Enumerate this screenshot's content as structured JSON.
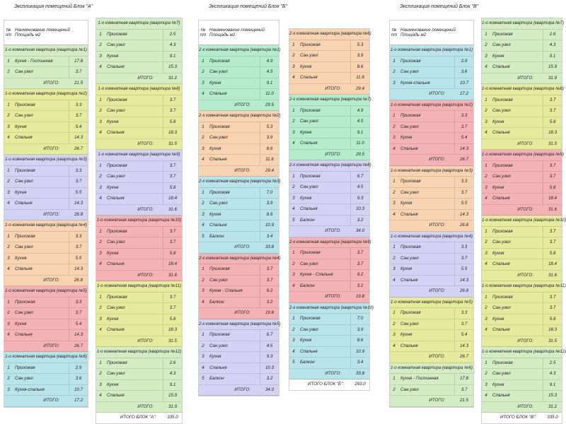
{
  "header": {
    "num": "№ п/п",
    "name": "Наименование помещений",
    "area": "Площадь м2"
  },
  "total_label": "ИТОГО:",
  "columns": [
    {
      "x": 5,
      "y": 28,
      "w": 120,
      "title": "Экспликация помещений Блок \"А\"",
      "header": true,
      "groups": [
        {
          "title": "1-о комнатная квартира (квартира №1)",
          "color": "green",
          "rows": [
            [
              "1",
              "Кухня - Гостинная",
              "17.8"
            ],
            [
              "2",
              "Сан.узел",
              "3.7"
            ]
          ],
          "total": "21.5"
        },
        {
          "title": "1-о комнатная квартира (квартира №2)",
          "color": "yellow",
          "rows": [
            [
              "1",
              "Прихожая",
              "3.3"
            ],
            [
              "2",
              "Сан.узел",
              "3.7"
            ],
            [
              "3",
              "Кухня",
              "5.4"
            ],
            [
              "4",
              "Спальня",
              "14.3"
            ]
          ],
          "total": "26.7"
        },
        {
          "title": "1-о комнатная квартира (квартира №3)",
          "color": "purple",
          "rows": [
            [
              "1",
              "Прихожая",
              "3.3"
            ],
            [
              "2",
              "Сан.узел",
              "3.7"
            ],
            [
              "3",
              "Кухня",
              "5.5"
            ],
            [
              "4",
              "Спальня",
              "14.3"
            ]
          ],
          "total": "26.8"
        },
        {
          "title": "1-о комнатная квартира (квартира №4)",
          "color": "orange",
          "rows": [
            [
              "1",
              "Прихожая",
              "3.3"
            ],
            [
              "2",
              "Сан.узел",
              "3.7"
            ],
            [
              "3",
              "Кухня",
              "5.5"
            ],
            [
              "4",
              "Спальня",
              "14.3"
            ]
          ],
          "total": "26.8"
        },
        {
          "title": "1-о комнатная квартира (квартира №5)",
          "color": "pink",
          "rows": [
            [
              "1",
              "Прихожая",
              "3.3"
            ],
            [
              "2",
              "Сан.узел",
              "3.7"
            ],
            [
              "3",
              "Кухня",
              "5.4"
            ],
            [
              "4",
              "Спальня",
              "14.3"
            ]
          ],
          "total": "26.7"
        },
        {
          "title": "1-о комнатная квартира (квартира №6)",
          "color": "blue",
          "rows": [
            [
              "1",
              "Прихожая",
              "2.9"
            ],
            [
              "2",
              "Сан.узел",
              "3.6"
            ],
            [
              "3",
              "Кухня-спальня",
              "10.7"
            ]
          ],
          "total": "17.2"
        }
      ]
    },
    {
      "x": 135,
      "y": 25,
      "w": 123,
      "header": false,
      "grand_label": "ИТОГО БЛОК \"А\":",
      "grand_total": "335.0",
      "groups": [
        {
          "title": "1-о комнатная квартира (квартира №7)",
          "color": "green",
          "rows": [
            [
              "1",
              "Прихожая",
              "2.5"
            ],
            [
              "2",
              "Сан.узел",
              "4.3"
            ],
            [
              "3",
              "Кухня",
              "9.1"
            ],
            [
              "4",
              "Спальня",
              "15.3"
            ]
          ],
          "total": "31.2"
        },
        {
          "title": "1-о комнатная квартира (квартира №8)",
          "color": "yellow",
          "rows": [
            [
              "1",
              "Прихожая",
              "3.7"
            ],
            [
              "2",
              "Сан.узел",
              "3.7"
            ],
            [
              "3",
              "Кухня",
              "5.8"
            ],
            [
              "4",
              "Спальня",
              "18.3"
            ]
          ],
          "total": "31.5"
        },
        {
          "title": "1-о комнатная квартира (квартира №9)",
          "color": "purple",
          "rows": [
            [
              "1",
              "Прихожая",
              "3.7"
            ],
            [
              "2",
              "Сан.узел",
              "3.7"
            ],
            [
              "3",
              "Кухня",
              "5.8"
            ],
            [
              "4",
              "Спальня",
              "18.4"
            ]
          ],
          "total": "31.6"
        },
        {
          "title": "1-о комнатная квартира (квартира №10)",
          "color": "pink",
          "rows": [
            [
              "1",
              "Прихожая",
              "3.7"
            ],
            [
              "2",
              "Сан.узел",
              "3.7"
            ],
            [
              "3",
              "Кухня",
              "5.8"
            ],
            [
              "4",
              "Спальня",
              "18.4"
            ]
          ],
          "total": "31.6"
        },
        {
          "title": "1-о комнатная квартира (квартира №11)",
          "color": "yellow",
          "rows": [
            [
              "1",
              "Прихожая",
              "3.7"
            ],
            [
              "2",
              "Сан.узел",
              "3.7"
            ],
            [
              "3",
              "Кухня",
              "5.8"
            ],
            [
              "4",
              "Спальня",
              "18.3"
            ]
          ],
          "total": "31.5"
        },
        {
          "title": "1-о комнатная квартира (квартира №12)",
          "color": "green",
          "rows": [
            [
              "1",
              "Прихожая",
              "2.6"
            ],
            [
              "2",
              "Сан.узел",
              "4.3"
            ],
            [
              "3",
              "Кухня",
              "9.1"
            ],
            [
              "4",
              "Спальня",
              "15.9"
            ]
          ],
          "total": "31.9"
        }
      ]
    },
    {
      "x": 280,
      "y": 28,
      "w": 115,
      "title": "Экспликация помещений Блок \"Б\"",
      "header": true,
      "groups": [
        {
          "title": "2-х комнатная квартира (квартира №1)",
          "color": "mint",
          "rows": [
            [
              "1",
              "Прихожая",
              "4.9"
            ],
            [
              "2",
              "Сан.узел",
              "4.5"
            ],
            [
              "3",
              "Кухня",
              "9.1"
            ],
            [
              "4",
              "Спальня",
              "11.0"
            ]
          ],
          "total": "29.5"
        },
        {
          "title": "2-х комнатная квартира (квартира №2)",
          "color": "orange",
          "rows": [
            [
              "1",
              "Прихожая",
              "5.3"
            ],
            [
              "2",
              "Сан.узел",
              "3.9"
            ],
            [
              "3",
              "Кухня",
              "8.6"
            ],
            [
              "4",
              "Спальня",
              "11.6"
            ]
          ],
          "total": "29.4"
        },
        {
          "title": "2-х комнатная квартира (квартира №3)",
          "color": "blue",
          "rows": [
            [
              "1",
              "Прихожая",
              "7.0"
            ],
            [
              "2",
              "Сан.узел",
              "3.9"
            ],
            [
              "3",
              "Кухня",
              "8.6"
            ],
            [
              "4",
              "Спальня",
              "10.9"
            ],
            [
              "5",
              "Балкон",
              "3.4"
            ]
          ],
          "total": "33.8"
        },
        {
          "title": "2-х комнатная квартира (квартира №4)",
          "color": "pink",
          "rows": [
            [
              "1",
              "Прихожая",
              "3.7"
            ],
            [
              "2",
              "Сан.узел",
              "3.7"
            ],
            [
              "3",
              "Кухня - Спальня",
              "9.2"
            ],
            [
              "4",
              "Балкон",
              "3.2"
            ]
          ],
          "total": "19.8"
        },
        {
          "title": "2-х комнатная квартира (квартира №5)",
          "color": "purple",
          "rows": [
            [
              "1",
              "Прихожая",
              "6.7"
            ],
            [
              "2",
              "Сан.узел",
              "4.5"
            ],
            [
              "3",
              "Кухня",
              "9.3"
            ],
            [
              "4",
              "Спальня",
              "10.3"
            ],
            [
              "5",
              "Балкон",
              "3.2"
            ]
          ],
          "total": "34.0"
        }
      ]
    },
    {
      "x": 408,
      "y": 40,
      "w": 115,
      "header": false,
      "grand_label": "ИТОГО БЛОК \"Б\":",
      "grand_total": "293.0",
      "groups": [
        {
          "title": "2-х комнатная квартира (квартира №6)",
          "color": "orange",
          "rows": [
            [
              "1",
              "Прихожая",
              "5.3"
            ],
            [
              "2",
              "Сан.узел",
              "3.9"
            ],
            [
              "3",
              "Кухня",
              "8.6"
            ],
            [
              "4",
              "Спальня",
              "11.6"
            ]
          ],
          "total": "29.4"
        },
        {
          "title": "2-х комнатная квартира (квартира №7)",
          "color": "mint",
          "rows": [
            [
              "1",
              "Прихожая",
              "4.9"
            ],
            [
              "2",
              "Сан.узел",
              "4.5"
            ],
            [
              "3",
              "Кухня",
              "9.1"
            ],
            [
              "4",
              "Спальня",
              "11.0"
            ]
          ],
          "total": "29.5"
        },
        {
          "title": "2-х комнатная квартира (квартира №8)",
          "color": "purple",
          "rows": [
            [
              "1",
              "Прихожая",
              "6.7"
            ],
            [
              "2",
              "Сан.узел",
              "4.5"
            ],
            [
              "3",
              "Кухня",
              "9.3"
            ],
            [
              "4",
              "Спальня",
              "10.3"
            ],
            [
              "5",
              "Балкон",
              "3.2"
            ]
          ],
          "total": "34.0"
        },
        {
          "title": "2-х комнатная квартира (квартира №9)",
          "color": "pink",
          "rows": [
            [
              "1",
              "Прихожая",
              "3.7"
            ],
            [
              "2",
              "Сан.узел",
              "3.7"
            ],
            [
              "3",
              "Кухня - Спальня",
              "9.2"
            ],
            [
              "4",
              "Балкон",
              "3.2"
            ]
          ],
          "total": "19.8"
        },
        {
          "title": "2-х комнатная квартира (квартира №10)",
          "color": "blue",
          "rows": [
            [
              "1",
              "Прихожая",
              "7.0"
            ],
            [
              "2",
              "Сан.узел",
              "3.9"
            ],
            [
              "3",
              "Кухня",
              "8.6"
            ],
            [
              "4",
              "Спальня",
              "10.9"
            ],
            [
              "5",
              "Балкон",
              "3.4"
            ]
          ],
          "total": "33.8"
        }
      ]
    },
    {
      "x": 550,
      "y": 28,
      "w": 120,
      "title": "Экспликация помещений Блок \"В\"",
      "header": true,
      "groups": [
        {
          "title": "1-о комнатная квартира (квартира №1)",
          "color": "blue",
          "rows": [
            [
              "1",
              "Прихожая",
              "2.9"
            ],
            [
              "2",
              "Сан.узел",
              "3.6"
            ],
            [
              "3",
              "Кухня-спальня",
              "10.7"
            ]
          ],
          "total": "17.2"
        },
        {
          "title": "1-о комнатная квартира (квартира №2)",
          "color": "pink",
          "rows": [
            [
              "1",
              "Прихожая",
              "3.3"
            ],
            [
              "2",
              "Сан.узел",
              "3.7"
            ],
            [
              "3",
              "Кухня",
              "5.4"
            ],
            [
              "4",
              "Спальня",
              "14.3"
            ]
          ],
          "total": "26.7"
        },
        {
          "title": "1-о комнатная квартира (квартира №3)",
          "color": "orange",
          "rows": [
            [
              "1",
              "Прихожая",
              "3.3"
            ],
            [
              "2",
              "Сан.узел",
              "3.7"
            ],
            [
              "3",
              "Кухня",
              "5.5"
            ],
            [
              "4",
              "Спальня",
              "14.3"
            ]
          ],
          "total": "26.8"
        },
        {
          "title": "1-о комнатная квартира (квартира №4)",
          "color": "purple",
          "rows": [
            [
              "1",
              "Прихожая",
              "3.3"
            ],
            [
              "2",
              "Сан.узел",
              "3.7"
            ],
            [
              "3",
              "Кухня",
              "5.5"
            ],
            [
              "4",
              "Спальня",
              "14.3"
            ]
          ],
          "total": "26.8"
        },
        {
          "title": "1-о комнатная квартира (квартира №5)",
          "color": "yellow",
          "rows": [
            [
              "1",
              "Прихожая",
              "3.3"
            ],
            [
              "2",
              "Сан.узел",
              "3.7"
            ],
            [
              "3",
              "Кухня",
              "5.4"
            ],
            [
              "4",
              "Спальня",
              "14.3"
            ]
          ],
          "total": "26.7"
        },
        {
          "title": "1-о комнатная квартира (квартира №6)",
          "color": "green",
          "rows": [
            [
              "1",
              "Кухня - Гостинная",
              "17.8"
            ],
            [
              "2",
              "Сан.узел",
              "3.7"
            ]
          ],
          "total": "21.5"
        }
      ]
    },
    {
      "x": 680,
      "y": 25,
      "w": 115,
      "header": false,
      "grand_label": "ИТОГО БЛОК \"В\":",
      "grand_total": "335.0",
      "groups": [
        {
          "title": "1-о комнатная квартира (квартира №7)",
          "color": "green",
          "rows": [
            [
              "1",
              "Прихожая",
              "2.6"
            ],
            [
              "2",
              "Сан.узел",
              "4.3"
            ],
            [
              "3",
              "Кухня",
              "9.1"
            ],
            [
              "4",
              "Спальня",
              "15.9"
            ]
          ],
          "total": "31.9"
        },
        {
          "title": "1-о комнатная квартира (квартира №8)",
          "color": "yellow",
          "rows": [
            [
              "1",
              "Прихожая",
              "3.7"
            ],
            [
              "2",
              "Сан.узел",
              "3.7"
            ],
            [
              "3",
              "Кухня",
              "5.8"
            ],
            [
              "4",
              "Спальня",
              "18.3"
            ]
          ],
          "total": "31.5"
        },
        {
          "title": "1-о комнатная квартира (квартира №9)",
          "color": "pink",
          "rows": [
            [
              "1",
              "Прихожая",
              "3.7"
            ],
            [
              "2",
              "Сан.узел",
              "3.7"
            ],
            [
              "3",
              "Кухня",
              "5.8"
            ],
            [
              "4",
              "Спальня",
              "18.4"
            ]
          ],
          "total": "31.6"
        },
        {
          "title": "1-о комнатная квартира (квартира №10)",
          "color": "yellow",
          "rows": [
            [
              "1",
              "Прихожая",
              "3.7"
            ],
            [
              "2",
              "Сан.узел",
              "3.7"
            ],
            [
              "3",
              "Кухня",
              "5.8"
            ],
            [
              "4",
              "Спальня",
              "18.4"
            ]
          ],
          "total": "31.6"
        },
        {
          "title": "1-о комнатная квартира (квартира №11)",
          "color": "yellow",
          "rows": [
            [
              "1",
              "Прихожая",
              "3.7"
            ],
            [
              "2",
              "Сан.узел",
              "3.7"
            ],
            [
              "3",
              "Кухня",
              "5.8"
            ],
            [
              "4",
              "Спальня",
              "18.3"
            ]
          ],
          "total": "31.5"
        },
        {
          "title": "1-о комнатная квартира (квартира №12)",
          "color": "green",
          "rows": [
            [
              "1",
              "Прихожая",
              "2.5"
            ],
            [
              "2",
              "Сан.узел",
              "4.3"
            ],
            [
              "3",
              "Кухня",
              "9.1"
            ],
            [
              "4",
              "Спальня",
              "15.3"
            ]
          ],
          "total": "31.2"
        }
      ]
    }
  ]
}
